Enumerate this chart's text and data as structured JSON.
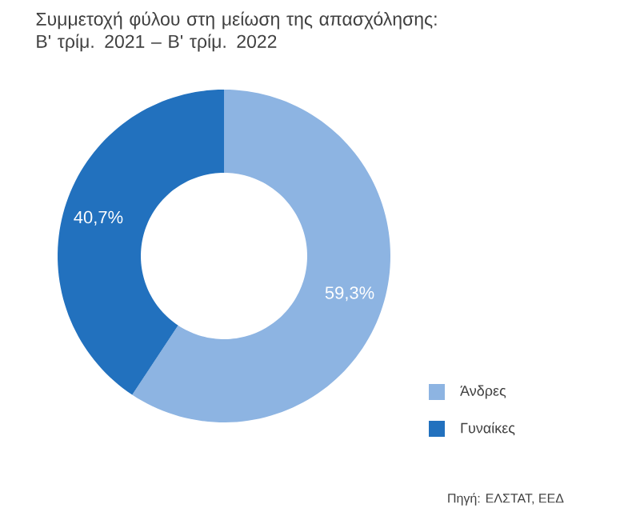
{
  "chart_data": {
    "type": "donut",
    "title": "Συμμετοχή φύλου στη μείωση της απασχόλησης: Β' τρίμ. 2021 – Β' τρίμ. 2022",
    "categories": [
      "Άνδρες",
      "Γυναίκες"
    ],
    "values": [
      59.3,
      40.7
    ],
    "colors": [
      "#8db4e2",
      "#2271be"
    ],
    "value_labels": [
      "59,3%",
      "40,7%"
    ],
    "legend": "bottom right",
    "annotations": [
      "Πηγή: ΕΛΣΤΑΤ, ΕΕΔ"
    ]
  }
}
